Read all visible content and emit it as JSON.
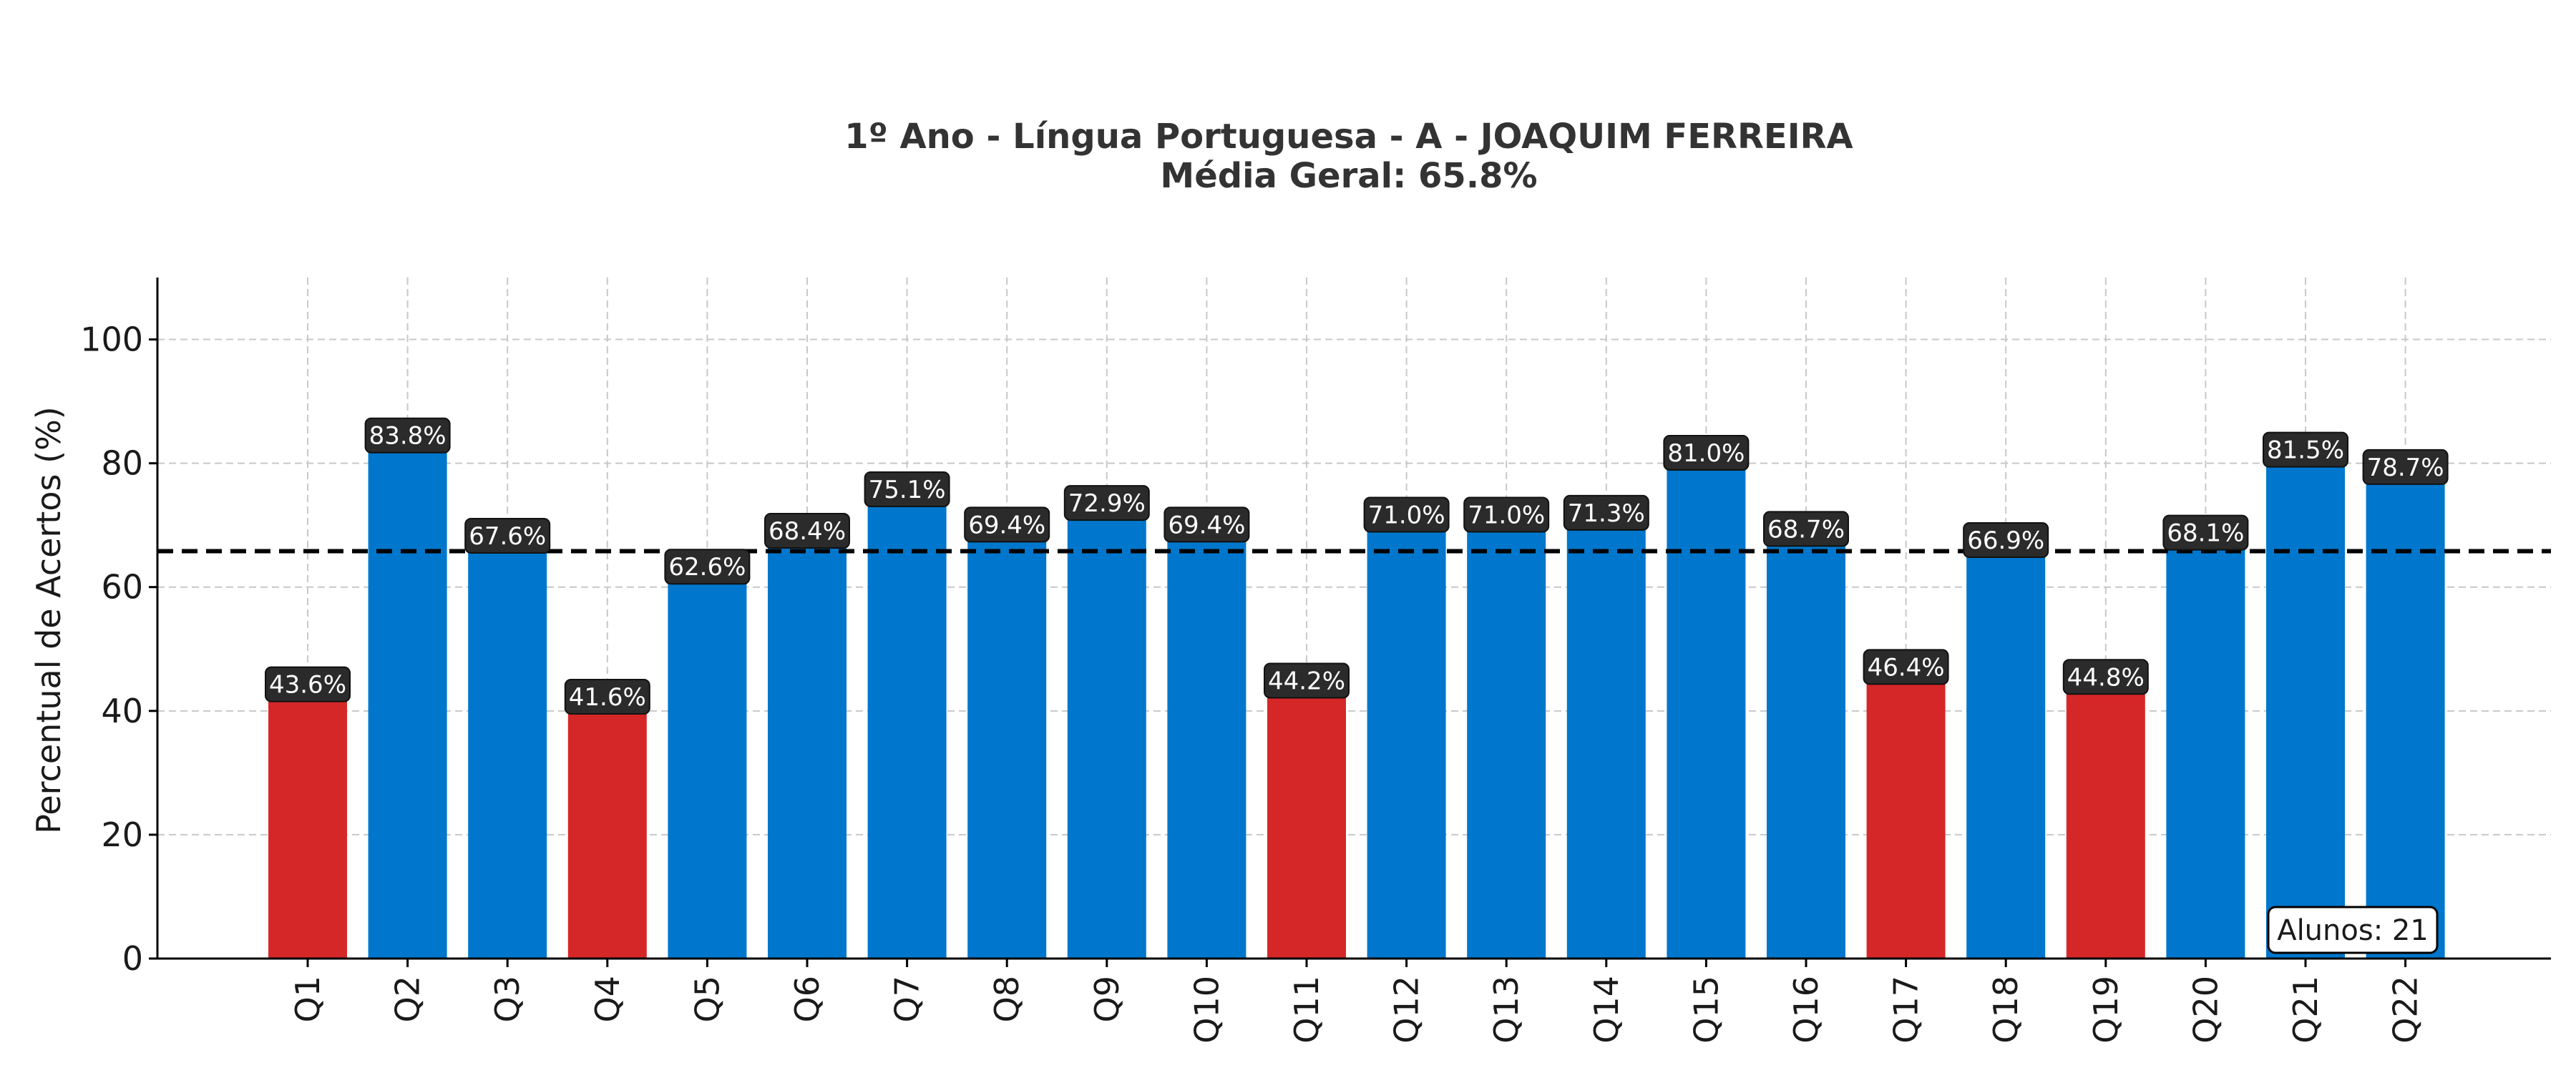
{
  "chart_data": {
    "type": "bar",
    "title": "1º Ano - Língua Portuguesa - A - JOAQUIM FERREIRA",
    "subtitle": "Média Geral: 65.8%",
    "xlabel": "",
    "ylabel": "Percentual de Acertos (%)",
    "ylim": [
      0,
      110
    ],
    "yticks": [
      0,
      20,
      40,
      60,
      80,
      100
    ],
    "grid": true,
    "reference_line": {
      "value": 65.8,
      "style": "dashed",
      "color": "#000000"
    },
    "colors": {
      "above": "#0077cc",
      "below": "#d62728"
    },
    "categories": [
      "Q1",
      "Q2",
      "Q3",
      "Q4",
      "Q5",
      "Q6",
      "Q7",
      "Q8",
      "Q9",
      "Q10",
      "Q11",
      "Q12",
      "Q13",
      "Q14",
      "Q15",
      "Q16",
      "Q17",
      "Q18",
      "Q19",
      "Q20",
      "Q21",
      "Q22"
    ],
    "values": [
      43.6,
      83.8,
      67.6,
      41.6,
      62.6,
      68.4,
      75.1,
      69.4,
      72.9,
      69.4,
      44.2,
      71.0,
      71.0,
      71.3,
      81.0,
      68.7,
      46.4,
      66.9,
      44.8,
      68.1,
      81.5,
      78.7
    ],
    "bar_colors": [
      "red",
      "blue",
      "blue",
      "red",
      "blue",
      "blue",
      "blue",
      "blue",
      "blue",
      "blue",
      "red",
      "blue",
      "blue",
      "blue",
      "blue",
      "blue",
      "red",
      "blue",
      "red",
      "blue",
      "blue",
      "blue"
    ],
    "data_labels": [
      "43.6%",
      "83.8%",
      "67.6%",
      "41.6%",
      "62.6%",
      "68.4%",
      "75.1%",
      "69.4%",
      "72.9%",
      "69.4%",
      "44.2%",
      "71.0%",
      "71.0%",
      "71.3%",
      "81.0%",
      "68.7%",
      "46.4%",
      "66.9%",
      "44.8%",
      "68.1%",
      "81.5%",
      "78.7%"
    ],
    "annotation": "Alunos: 21"
  }
}
